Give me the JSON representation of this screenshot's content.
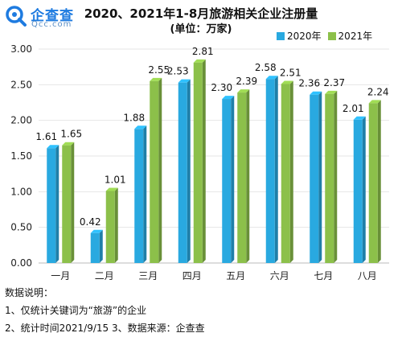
{
  "logo": {
    "name": "企查查",
    "domain": "Qcc.com"
  },
  "chart_data": {
    "type": "bar",
    "title": "2020、2021年1-8月旅游相关企业注册量",
    "subtitle": "(单位：万家)",
    "categories": [
      "一月",
      "二月",
      "三月",
      "四月",
      "五月",
      "六月",
      "七月",
      "八月"
    ],
    "series": [
      {
        "name": "2020年",
        "values": [
          1.61,
          0.42,
          1.88,
          2.53,
          2.3,
          2.58,
          2.36,
          2.01
        ],
        "color": "#29a9e0"
      },
      {
        "name": "2021年",
        "values": [
          1.65,
          1.01,
          2.55,
          2.81,
          2.39,
          2.51,
          2.37,
          2.24
        ],
        "color": "#8cc04a"
      }
    ],
    "ylim": [
      0,
      3
    ],
    "yticks": [
      "0.00",
      "0.50",
      "1.00",
      "1.50",
      "2.00",
      "2.50",
      "3.00"
    ],
    "grid": true,
    "legend_position": "top-right"
  },
  "notes": {
    "heading": "数据说明：",
    "line1": "1、仅统计关键词为“旅游”的企业",
    "line2": "2、统计时间2021/9/15   3、数据来源：企查查"
  }
}
